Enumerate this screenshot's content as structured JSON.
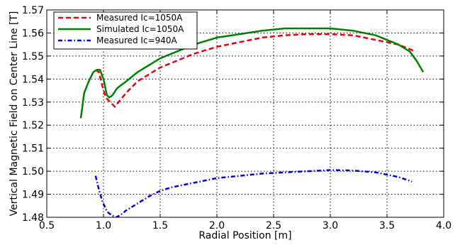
{
  "chart_data": {
    "type": "line",
    "title": "",
    "xlabel": "Radial Position [m]",
    "ylabel": "Vertical Magnetic Field on Center Line [T]",
    "xlim": [
      0.5,
      4.0
    ],
    "ylim": [
      1.48,
      1.57
    ],
    "xticks": [
      "0.5",
      "1.0",
      "1.5",
      "2.0",
      "2.5",
      "3.0",
      "3.5",
      "4.0"
    ],
    "yticks": [
      "1.48",
      "1.49",
      "1.50",
      "1.51",
      "1.52",
      "1.53",
      "1.54",
      "1.55",
      "1.56",
      "1.57"
    ],
    "grid": true,
    "legend_position": "top-left",
    "series": [
      {
        "name": "Measured Ic=1050A",
        "color": "#e8000b",
        "style": "dashed",
        "x": [
          0.93,
          0.96,
          0.99,
          1.02,
          1.06,
          1.1,
          1.15,
          1.2,
          1.3,
          1.4,
          1.5,
          1.6,
          1.8,
          2.0,
          2.2,
          2.4,
          2.6,
          2.8,
          3.0,
          3.2,
          3.4,
          3.6,
          3.75
        ],
        "y": [
          1.544,
          1.543,
          1.537,
          1.532,
          1.53,
          1.528,
          1.531,
          1.534,
          1.539,
          1.542,
          1.545,
          1.547,
          1.551,
          1.554,
          1.556,
          1.558,
          1.559,
          1.5595,
          1.5595,
          1.559,
          1.557,
          1.555,
          1.552
        ]
      },
      {
        "name": "Simulated Ic=1050A",
        "color": "#008000",
        "style": "solid",
        "x": [
          0.8,
          0.83,
          0.87,
          0.91,
          0.94,
          0.97,
          1.0,
          1.03,
          1.05,
          1.08,
          1.12,
          1.2,
          1.3,
          1.4,
          1.5,
          1.6,
          1.8,
          2.0,
          2.2,
          2.4,
          2.6,
          2.8,
          3.0,
          3.2,
          3.4,
          3.6,
          3.7,
          3.76,
          3.82
        ],
        "y": [
          1.523,
          1.534,
          1.539,
          1.543,
          1.544,
          1.544,
          1.54,
          1.533,
          1.532,
          1.533,
          1.536,
          1.539,
          1.543,
          1.546,
          1.549,
          1.551,
          1.555,
          1.558,
          1.5595,
          1.561,
          1.562,
          1.562,
          1.562,
          1.561,
          1.559,
          1.555,
          1.552,
          1.548,
          1.543
        ]
      },
      {
        "name": "Measured Ic=940A",
        "color": "#0000e0",
        "style": "dashdot",
        "x": [
          0.93,
          0.96,
          0.99,
          1.03,
          1.07,
          1.11,
          1.15,
          1.2,
          1.3,
          1.4,
          1.5,
          1.6,
          1.8,
          2.0,
          2.2,
          2.4,
          2.6,
          2.8,
          3.0,
          3.2,
          3.4,
          3.6,
          3.72
        ],
        "y": [
          1.498,
          1.492,
          1.487,
          1.4825,
          1.481,
          1.48,
          1.481,
          1.483,
          1.486,
          1.489,
          1.4915,
          1.493,
          1.495,
          1.497,
          1.498,
          1.499,
          1.4995,
          1.5,
          1.5005,
          1.5003,
          1.4995,
          1.4975,
          1.4955
        ]
      }
    ]
  }
}
